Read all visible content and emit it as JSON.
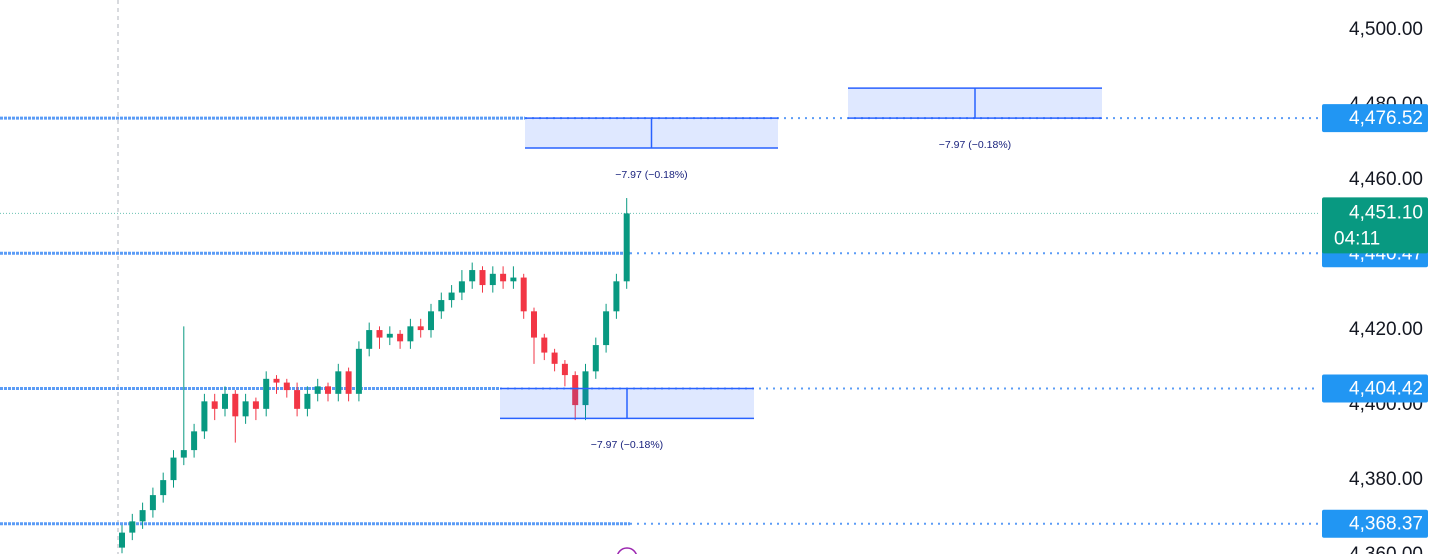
{
  "chart_data": {
    "type": "candlestick",
    "ylim": [
      4360.3,
      4508.0
    ],
    "yticks": [
      {
        "value": 4360,
        "label": "4,360.00"
      },
      {
        "value": 4380,
        "label": "4,380.00"
      },
      {
        "value": 4400,
        "label": "4,400.00"
      },
      {
        "value": 4420,
        "label": "4,420.00"
      },
      {
        "value": 4440,
        "label": "4,440.00"
      },
      {
        "value": 4460,
        "label": "4,460.00"
      },
      {
        "value": 4480,
        "label": "4,480.00"
      },
      {
        "value": 4500,
        "label": "4,500.00"
      }
    ],
    "up_color": "#089981",
    "down_color": "#f23645",
    "open": [
      4362,
      4366,
      4369,
      4372,
      4376,
      4380,
      4386,
      4388,
      4393,
      4401,
      4399,
      4403,
      4397,
      4401,
      4399,
      4407,
      4406,
      4404,
      4399,
      4403,
      4405,
      4403,
      4409,
      4403,
      4415,
      4420,
      4418,
      4419,
      4417,
      4421,
      4420,
      4425,
      4428,
      4430,
      4433,
      4436,
      4432,
      4435,
      4433,
      4434,
      4425,
      4418,
      4414,
      4411,
      4408,
      4400,
      4409,
      4416,
      4425,
      4433
    ],
    "high": [
      4368,
      4371,
      4374,
      4378,
      4382,
      4388,
      4421,
      4395,
      4403,
      4403,
      4405,
      4404,
      4403,
      4402,
      4409,
      4408,
      4407,
      4406,
      4405,
      4407,
      4406,
      4411,
      4410,
      4417,
      4422,
      4421,
      4421,
      4420,
      4423,
      4423,
      4427,
      4430,
      4432,
      4436,
      4438,
      4437,
      4437,
      4437,
      4437,
      4435,
      4426,
      4419,
      4415,
      4412,
      4409,
      4411,
      4418,
      4427,
      4435,
      4455.2
    ],
    "low": [
      4360.5,
      4364,
      4367,
      4370,
      4374,
      4378,
      4384,
      4386,
      4391,
      4396,
      4397,
      4390,
      4395,
      4396,
      4397,
      4403,
      4402,
      4397,
      4397,
      4401,
      4401,
      4401,
      4401,
      4401,
      4413,
      4415,
      4416,
      4415,
      4415,
      4418,
      4418,
      4423,
      4426,
      4428,
      4431,
      4430,
      4430,
      4431,
      4431,
      4423,
      4411,
      4412,
      4409,
      4405,
      4396,
      4396,
      4407,
      4414,
      4423,
      4431
    ],
    "close": [
      4366,
      4369,
      4372,
      4376,
      4380,
      4386,
      4388,
      4393,
      4401,
      4399,
      4403,
      4397,
      4401,
      4399,
      4407,
      4406,
      4404,
      4399,
      4403,
      4405,
      4403,
      4409,
      4403,
      4415,
      4420,
      4418,
      4419,
      4417,
      4421,
      4420,
      4425,
      4428,
      4430,
      4433,
      4436,
      4432,
      4435,
      4433,
      4434,
      4425,
      4418,
      4414,
      4411,
      4408,
      4400,
      4409,
      4416,
      4425,
      4433,
      4451.1
    ],
    "last_price": {
      "value": 4451.1,
      "label": "4,451.10",
      "countdown": "04:11"
    },
    "levels": [
      {
        "value": 4476.52,
        "label": "4,476.52"
      },
      {
        "value": 4440.47,
        "label": "4,440.47"
      },
      {
        "value": 4404.42,
        "label": "4,404.42"
      },
      {
        "value": 4368.37,
        "label": "4,368.37"
      }
    ],
    "ranges": [
      {
        "top": 4476.52,
        "bottom": 4468.55,
        "label": "−7.97 (−0.18%)"
      },
      {
        "top": 4484.49,
        "bottom": 4476.52,
        "label": "−7.97 (−0.18%)"
      },
      {
        "top": 4404.42,
        "bottom": 4396.45,
        "label": "−7.97 (−0.18%)"
      }
    ]
  }
}
